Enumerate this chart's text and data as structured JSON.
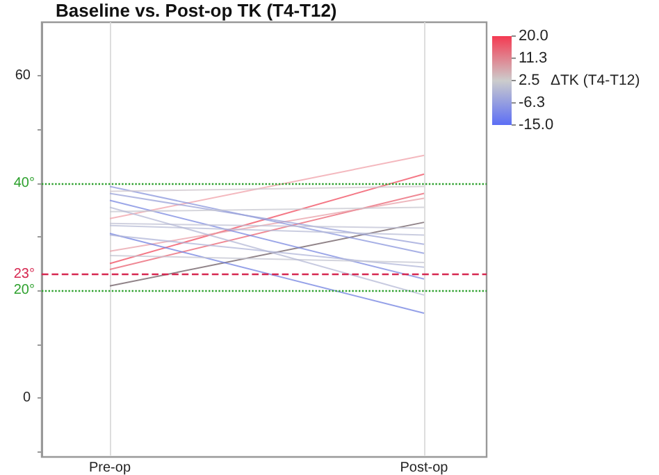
{
  "chart_data": {
    "type": "line",
    "title": "Baseline vs. Post-op TK (T4-T12)",
    "categories": [
      "Pre-op",
      "Post-op"
    ],
    "series": [
      {
        "color": "#f04a5c",
        "values": [
          24.9,
          41.6
        ]
      },
      {
        "color": "#ea6070",
        "values": [
          23.8,
          38
        ]
      },
      {
        "color": "#6b5a60",
        "values": [
          20.7,
          32.6
        ]
      },
      {
        "color": "#f0a0a8",
        "values": [
          33.3,
          45.1
        ]
      },
      {
        "color": "#e8a0a8",
        "values": [
          27.2,
          37.1
        ]
      },
      {
        "color": "#7080e0",
        "values": [
          30.5,
          15.6
        ]
      },
      {
        "color": "#7a88e0",
        "values": [
          36.7,
          22
        ]
      },
      {
        "color": "#8a96dc",
        "values": [
          39.3,
          26.8
        ]
      },
      {
        "color": "#9aa2d8",
        "values": [
          38,
          28.5
        ]
      },
      {
        "color": "#c8c8d0",
        "values": [
          34.6,
          35.4
        ]
      },
      {
        "color": "#c0c2d4",
        "values": [
          32.4,
          31.5
        ]
      },
      {
        "color": "#b8bcd6",
        "values": [
          32,
          30.2
        ]
      },
      {
        "color": "#b0b6d8",
        "values": [
          30.2,
          24.2
        ]
      },
      {
        "color": "#c4c6d2",
        "values": [
          26.4,
          25.1
        ]
      },
      {
        "color": "#cfc6cc",
        "values": [
          38.4,
          39.3
        ]
      },
      {
        "color": "#b4b8d6",
        "values": [
          35.4,
          19
        ]
      }
    ],
    "ylim": [
      -11,
      70
    ],
    "yticks": [
      {
        "value": -10,
        "label": null
      },
      0,
      {
        "value": 10,
        "label": null
      },
      {
        "value": 20,
        "label": null
      },
      {
        "value": 30,
        "label": null
      },
      {
        "value": 40,
        "label": null
      },
      {
        "value": 50,
        "label": null
      },
      60
    ],
    "ref_lines": [
      {
        "axis": "y",
        "value": 40,
        "label": "40°",
        "color": "#2ca02c",
        "line_style": "dotted"
      },
      {
        "axis": "y",
        "value": 23,
        "label": "23°",
        "color": "#d62750",
        "line_style": "dashed"
      },
      {
        "axis": "y",
        "value": 20,
        "label": "20°",
        "color": "#2ca02c",
        "line_style": "dotted"
      }
    ],
    "clim": [
      -15,
      20
    ],
    "cticks": [
      {
        "value": 20,
        "label": "20.0"
      },
      {
        "value": 11.3,
        "label": "11.3"
      },
      {
        "value": 2.5,
        "label": "2.5"
      },
      {
        "value": -6.3,
        "label": "-6.3"
      },
      {
        "value": -15,
        "label": "-15.0"
      }
    ],
    "clabel": "ΔTK (T4-T12)",
    "grid": "x",
    "marker": "none",
    "line_style": "solid"
  }
}
